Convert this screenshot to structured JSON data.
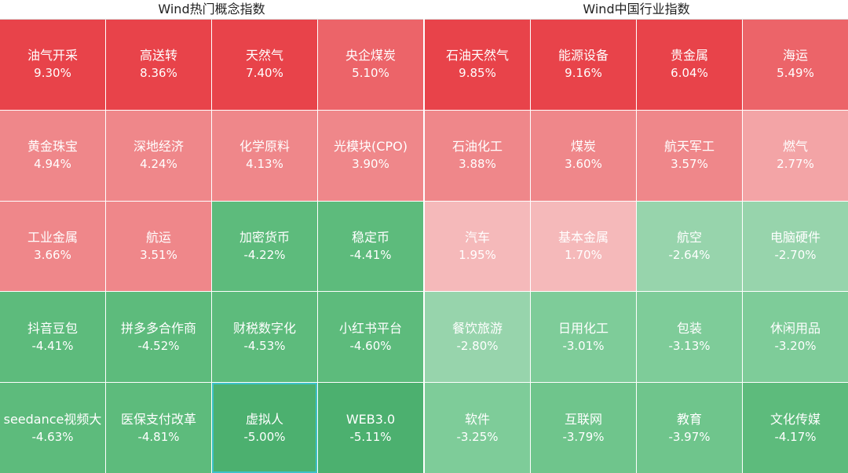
{
  "panels": [
    {
      "title": "Wind热门概念指数",
      "tiles": [
        {
          "name": "油气开采",
          "change": "9.30%"
        },
        {
          "name": "高送转",
          "change": "8.36%"
        },
        {
          "name": "天然气",
          "change": "7.40%"
        },
        {
          "name": "央企煤炭",
          "change": "5.10%"
        },
        {
          "name": "黄金珠宝",
          "change": "4.94%"
        },
        {
          "name": "深地经济",
          "change": "4.24%"
        },
        {
          "name": "化学原料",
          "change": "4.13%"
        },
        {
          "name": "光模块(CPO)",
          "change": "3.90%"
        },
        {
          "name": "工业金属",
          "change": "3.66%"
        },
        {
          "name": "航运",
          "change": "3.51%"
        },
        {
          "name": "加密货币",
          "change": "-4.22%"
        },
        {
          "name": "稳定币",
          "change": "-4.41%"
        },
        {
          "name": "抖音豆包",
          "change": "-4.41%"
        },
        {
          "name": "拼多多合作商",
          "change": "-4.52%"
        },
        {
          "name": "财税数字化",
          "change": "-4.53%"
        },
        {
          "name": "小红书平台",
          "change": "-4.60%"
        },
        {
          "name": "seedance视频大",
          "change": "-4.63%"
        },
        {
          "name": "医保支付改革",
          "change": "-4.81%"
        },
        {
          "name": "虚拟人",
          "change": "-5.00%"
        },
        {
          "name": "WEB3.0",
          "change": "-5.11%"
        }
      ]
    },
    {
      "title": "Wind中国行业指数",
      "tiles": [
        {
          "name": "石油天然气",
          "change": "9.85%"
        },
        {
          "name": "能源设备",
          "change": "9.16%"
        },
        {
          "name": "贵金属",
          "change": "6.04%"
        },
        {
          "name": "海运",
          "change": "5.49%"
        },
        {
          "name": "石油化工",
          "change": "3.88%"
        },
        {
          "name": "煤炭",
          "change": "3.60%"
        },
        {
          "name": "航天军工",
          "change": "3.57%"
        },
        {
          "name": "燃气",
          "change": "2.77%"
        },
        {
          "name": "汽车",
          "change": "1.95%"
        },
        {
          "name": "基本金属",
          "change": "1.70%"
        },
        {
          "name": "航空",
          "change": "-2.64%"
        },
        {
          "name": "电脑硬件",
          "change": "-2.70%"
        },
        {
          "name": "餐饮旅游",
          "change": "-2.80%"
        },
        {
          "name": "日用化工",
          "change": "-3.01%"
        },
        {
          "name": "包装",
          "change": "-3.13%"
        },
        {
          "name": "休闲用品",
          "change": "-3.20%"
        },
        {
          "name": "软件",
          "change": "-3.25%"
        },
        {
          "name": "互联网",
          "change": "-3.79%"
        },
        {
          "name": "教育",
          "change": "-3.97%"
        },
        {
          "name": "文化传媒",
          "change": "-4.17%"
        }
      ]
    }
  ]
}
